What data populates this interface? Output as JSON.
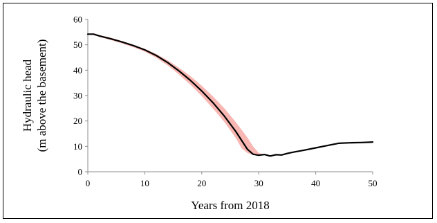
{
  "chart_data": {
    "type": "line",
    "title": "",
    "xlabel": "Years from 2018",
    "ylabel_lines": [
      "Hydraulic head",
      "(m above the basement)"
    ],
    "xlim": [
      0,
      50
    ],
    "ylim": [
      0,
      60
    ],
    "x_ticks": [
      0,
      10,
      20,
      30,
      40,
      50
    ],
    "y_ticks": [
      0,
      10,
      20,
      30,
      40,
      50,
      60
    ],
    "grid": false,
    "legend": "none",
    "colors": {
      "line": "#000000",
      "band": "#f8b7b3",
      "axis": "#8c8c8c"
    },
    "series": [
      {
        "x": [
          0,
          1,
          2,
          4,
          6,
          8,
          10,
          12,
          14,
          16,
          18,
          20,
          22,
          24,
          26,
          27,
          28,
          29,
          30,
          31,
          32,
          33,
          34,
          35,
          36,
          38,
          40,
          42,
          44,
          46,
          48,
          50
        ],
        "values": [
          54.2,
          54.2,
          53.5,
          52.4,
          51.1,
          49.7,
          48.0,
          45.8,
          43.0,
          39.7,
          36.0,
          31.8,
          27.1,
          21.8,
          15.8,
          12.3,
          8.9,
          6.9,
          6.5,
          6.8,
          6.2,
          6.7,
          6.6,
          7.2,
          7.7,
          8.5,
          9.4,
          10.3,
          11.2,
          11.4,
          11.5,
          11.7
        ]
      }
    ],
    "band": {
      "x": [
        1,
        2,
        4,
        6,
        8,
        10,
        12,
        14,
        16,
        18,
        20,
        22,
        24,
        26,
        27,
        28,
        29,
        30,
        31
      ],
      "upper": [
        54.6,
        53.8,
        52.8,
        51.5,
        50.0,
        48.4,
        46.4,
        43.9,
        41.0,
        37.7,
        33.9,
        29.6,
        24.9,
        19.5,
        16.5,
        13.5,
        10.0,
        7.4,
        6.8
      ],
      "lower": [
        54.2,
        53.1,
        51.9,
        50.5,
        49.0,
        47.3,
        44.9,
        41.9,
        38.3,
        34.3,
        29.8,
        24.8,
        19.5,
        13.2,
        9.2,
        7.4,
        6.6,
        6.4,
        6.6
      ]
    }
  }
}
